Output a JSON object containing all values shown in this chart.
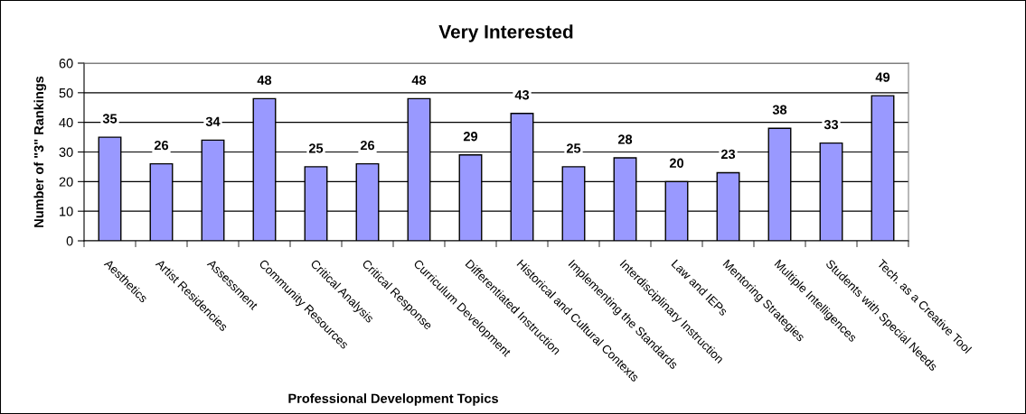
{
  "chart_data": {
    "type": "bar",
    "title": "Very Interested",
    "xlabel": "Professional Development Topics",
    "ylabel": "Number of \"3\" Rankings",
    "categories": [
      "Aesthetics",
      "Artist Residencies",
      "Assessment",
      "Community Resources",
      "Critical Analysis",
      "Critical Response",
      "Curriculum Development",
      "Differentiated Instruction",
      "Historical and Cultural Contexts",
      "Implementing the Standards",
      "Interdisciplinary Instruction",
      "Law and IEPs",
      "Mentoring Strategies",
      "Multiple Intelligences",
      "Students with Special Needs",
      "Tech. as a Creative Tool"
    ],
    "values": [
      35,
      26,
      34,
      48,
      25,
      26,
      48,
      29,
      43,
      25,
      28,
      20,
      23,
      38,
      33,
      49
    ],
    "color": "#9999ff",
    "ylim": [
      0,
      60
    ],
    "yticks": [
      0,
      10,
      20,
      30,
      40,
      50,
      60
    ],
    "grid": "y",
    "data_labels": true
  }
}
